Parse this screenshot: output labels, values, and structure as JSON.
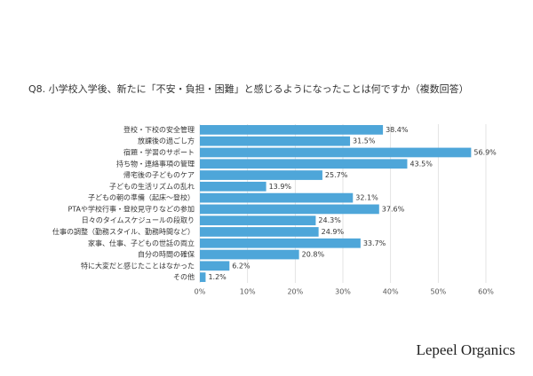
{
  "chart_data": {
    "type": "barh",
    "title": "Q8. 小学校入学後、新たに「不安・負担・困難」と感じるようになったことは何ですか（複数回答）",
    "categories": [
      "登校・下校の安全管理",
      "放課後の過ごし方",
      "宿題・学習のサポート",
      "持ち物・連絡事項の管理",
      "帰宅後の子どものケア",
      "子どもの生活リズムの乱れ",
      "子どもの朝の準備（起床〜登校）",
      "PTAや学校行事・登校見守りなどの参加",
      "日々のタイムスケジュールの段取り",
      "仕事の調整（勤務スタイル、勤務時間など）",
      "家事、仕事、子どもの世話の両立",
      "自分の時間の確保",
      "特に大変だと感じたことはなかった",
      "その他"
    ],
    "values": [
      38.4,
      31.5,
      56.9,
      43.5,
      25.7,
      13.9,
      32.1,
      37.6,
      24.3,
      24.9,
      33.7,
      20.8,
      6.2,
      1.2
    ],
    "value_labels": [
      "38.4%",
      "31.5%",
      "56.9%",
      "43.5%",
      "25.7%",
      "13.9%",
      "32.1%",
      "37.6%",
      "24.3%",
      "24.9%",
      "33.7%",
      "20.8%",
      "6.2%",
      "1.2%"
    ],
    "color": "#4ea6d9",
    "xlim": [
      0,
      60
    ],
    "xticks": [
      {
        "value": 0,
        "label": "0%"
      },
      {
        "value": 10,
        "label": "10%"
      },
      {
        "value": 20,
        "label": "20%"
      },
      {
        "value": 30,
        "label": "30%"
      },
      {
        "value": 40,
        "label": "40%"
      },
      {
        "value": 50,
        "label": "50%"
      },
      {
        "value": 60,
        "label": "60%"
      }
    ],
    "grid": true,
    "source": "Lepeel Organics"
  }
}
